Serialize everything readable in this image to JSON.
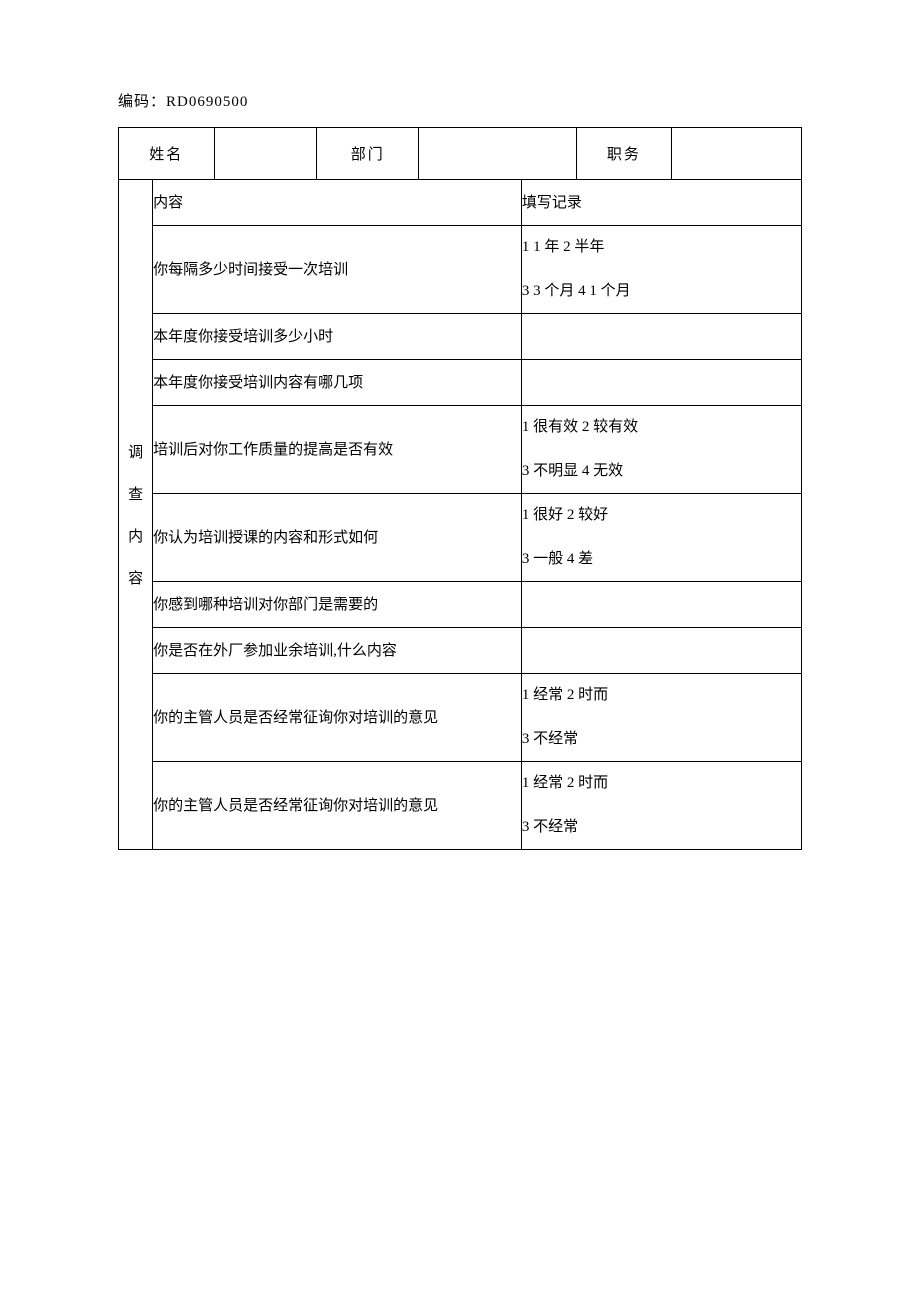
{
  "code_label": "编码：",
  "code_value": "RD0690500",
  "header": {
    "name_label": "姓名",
    "dept_label": "部门",
    "pos_label": "职务"
  },
  "side_label_chars": [
    "调",
    "查",
    "内",
    "容"
  ],
  "th": {
    "content": "内容",
    "record": "填写记录"
  },
  "rows": [
    {
      "q": "你每隔多少时间接受一次培训",
      "a": "1 1 年 2 半年<br>3 3 个月 4 1 个月"
    },
    {
      "q": "本年度你接受培训多少小时",
      "a": ""
    },
    {
      "q": "本年度你接受培训内容有哪几项",
      "a": ""
    },
    {
      "q": "培训后对你工作质量的提高是否有效",
      "a": "1 很有效 2 较有效<br>3 不明显 4 无效"
    },
    {
      "q": "你认为培训授课的内容和形式如何",
      "a": "1 很好 2 较好<br>3 一般 4 差"
    },
    {
      "q": "你感到哪种培训对你部门是需要的",
      "a": ""
    },
    {
      "q": "你是否在外厂参加业余培训,什么内容",
      "a": ""
    },
    {
      "q": "你的主管人员是否经常征询你对培训的意见",
      "a": "1 经常 2 时而<br>3 不经常"
    },
    {
      "q": "你的主管人员是否经常征询你对培训的意见",
      "a": "1 经常 2 时而<br>3 不经常"
    }
  ],
  "layout": {
    "col_widths_pct": [
      5,
      9,
      15,
      15,
      15,
      8,
      14,
      19
    ]
  }
}
